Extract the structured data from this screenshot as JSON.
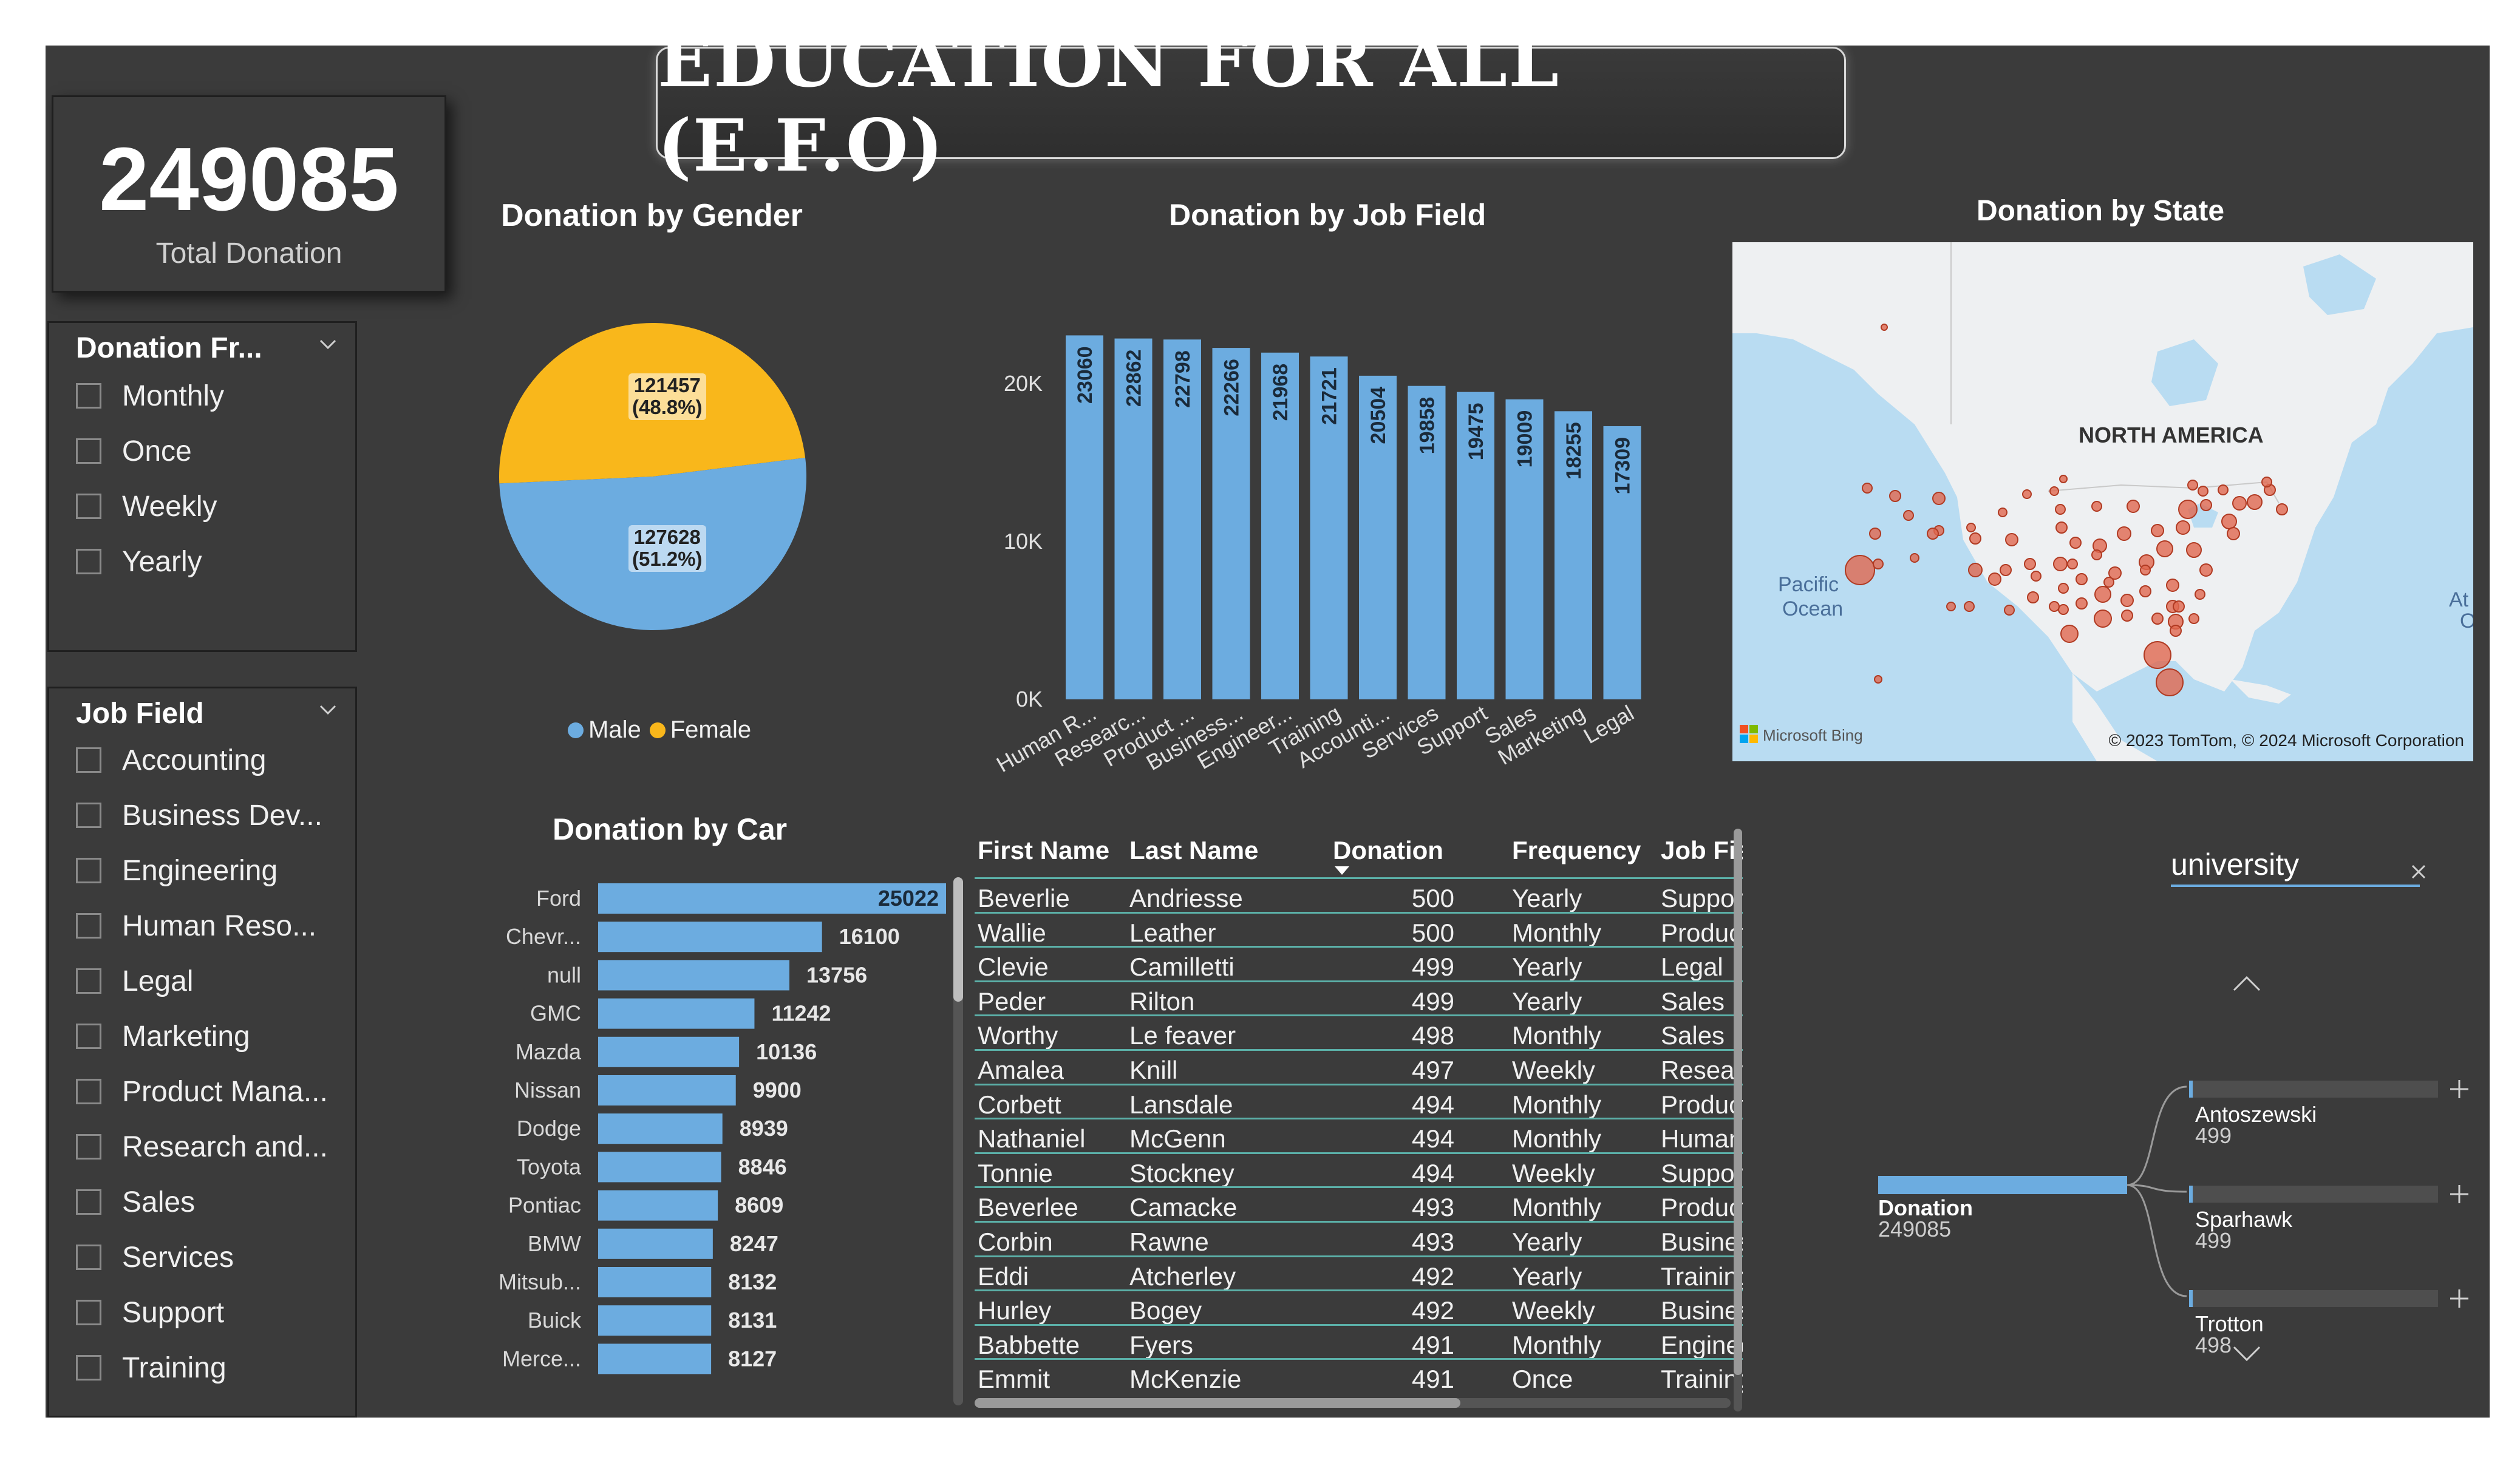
{
  "title": "EDUCATION FOR ALL (E.F.O)",
  "kpi": {
    "value": "249085",
    "label": "Total Donation"
  },
  "slicer_frequency": {
    "header": "Donation Fr...",
    "items": [
      "Monthly",
      "Once",
      "Weekly",
      "Yearly"
    ]
  },
  "slicer_jobfield": {
    "header": "Job Field",
    "items": [
      "Accounting",
      "Business Dev...",
      "Engineering",
      "Human Reso...",
      "Legal",
      "Marketing",
      "Product Mana...",
      "Research and...",
      "Sales",
      "Services",
      "Support",
      "Training"
    ]
  },
  "gender_chart": {
    "title": "Donation by Gender",
    "chart_data": {
      "type": "pie",
      "categories": [
        "Male",
        "Female"
      ],
      "values": [
        127628,
        121457
      ],
      "data_labels": [
        "127628\n(51.2%)",
        "121457\n(48.8%)"
      ],
      "colors": [
        "#6cace0",
        "#f9b71b"
      ],
      "legend": "bottom"
    }
  },
  "jobfield_chart": {
    "title": "Donation by Job Field",
    "chart_data": {
      "type": "bar",
      "categories": [
        "Human R...",
        "Researc...",
        "Product ...",
        "Business...",
        "Engineer...",
        "Training",
        "Accounti...",
        "Services",
        "Support",
        "Sales",
        "Marketing",
        "Legal"
      ],
      "values": [
        23060,
        22862,
        22798,
        22266,
        21968,
        21721,
        20504,
        19858,
        19475,
        19009,
        18255,
        17309
      ],
      "yticks": [
        "0K",
        "10K",
        "20K"
      ],
      "ylim": [
        0,
        20000
      ],
      "color": "#6cace0"
    }
  },
  "car_chart": {
    "title": "Donation by Car",
    "chart_data": {
      "type": "bar",
      "orientation": "horizontal",
      "categories": [
        "Ford",
        "Chevr...",
        "null",
        "GMC",
        "Mazda",
        "Nissan",
        "Dodge",
        "Toyota",
        "Pontiac",
        "BMW",
        "Mitsub...",
        "Buick",
        "Merce..."
      ],
      "values": [
        25022,
        16100,
        13756,
        11242,
        10136,
        9900,
        8939,
        8846,
        8609,
        8247,
        8132,
        8131,
        8127
      ],
      "color": "#6cace0"
    }
  },
  "state_map": {
    "title": "Donation by State",
    "labels": {
      "continent": "NORTH AMERICA",
      "ocean1": "Pacific",
      "ocean2": "Ocean",
      "edge": "At",
      "edge2": "O"
    },
    "brand": "Microsoft Bing",
    "copyright": "© 2023 TomTom, © 2024 Microsoft Corporation",
    "bubble_color": "#e0684f"
  },
  "table": {
    "columns": [
      "First Name",
      "Last Name",
      "Donation",
      "Frequency",
      "Job Fie"
    ],
    "rows": [
      [
        "Beverlie",
        "Andriesse",
        "500",
        "Yearly",
        "Suppor"
      ],
      [
        "Wallie",
        "Leather",
        "500",
        "Monthly",
        "Product"
      ],
      [
        "Clevie",
        "Camilletti",
        "499",
        "Yearly",
        "Legal"
      ],
      [
        "Peder",
        "Rilton",
        "499",
        "Yearly",
        "Sales"
      ],
      [
        "Worthy",
        "Le feaver",
        "498",
        "Monthly",
        "Sales"
      ],
      [
        "Amalea",
        "Knill",
        "497",
        "Weekly",
        "Resear"
      ],
      [
        "Corbett",
        "Lansdale",
        "494",
        "Monthly",
        "Product"
      ],
      [
        "Nathaniel",
        "McGenn",
        "494",
        "Monthly",
        "Human"
      ],
      [
        "Tonnie",
        "Stockney",
        "494",
        "Weekly",
        "Suppor"
      ],
      [
        "Beverlee",
        "Camacke",
        "493",
        "Monthly",
        "Product"
      ],
      [
        "Corbin",
        "Rawne",
        "493",
        "Yearly",
        "Busines"
      ],
      [
        "Eddi",
        "Atcherley",
        "492",
        "Yearly",
        "Training"
      ],
      [
        "Hurley",
        "Bogey",
        "492",
        "Weekly",
        "Busines"
      ],
      [
        "Babbette",
        "Fyers",
        "491",
        "Monthly",
        "Enginee"
      ],
      [
        "Emmit",
        "McKenzie",
        "491",
        "Once",
        "Training"
      ]
    ]
  },
  "decomp_tree": {
    "search_value": "university",
    "root_label": "Donation",
    "root_value": "249085",
    "nodes": [
      {
        "label": "Antoszewski",
        "value": "499"
      },
      {
        "label": "Sparhawk",
        "value": "499"
      },
      {
        "label": "Trotton",
        "value": "498"
      }
    ],
    "bar_color": "#6cace0"
  }
}
